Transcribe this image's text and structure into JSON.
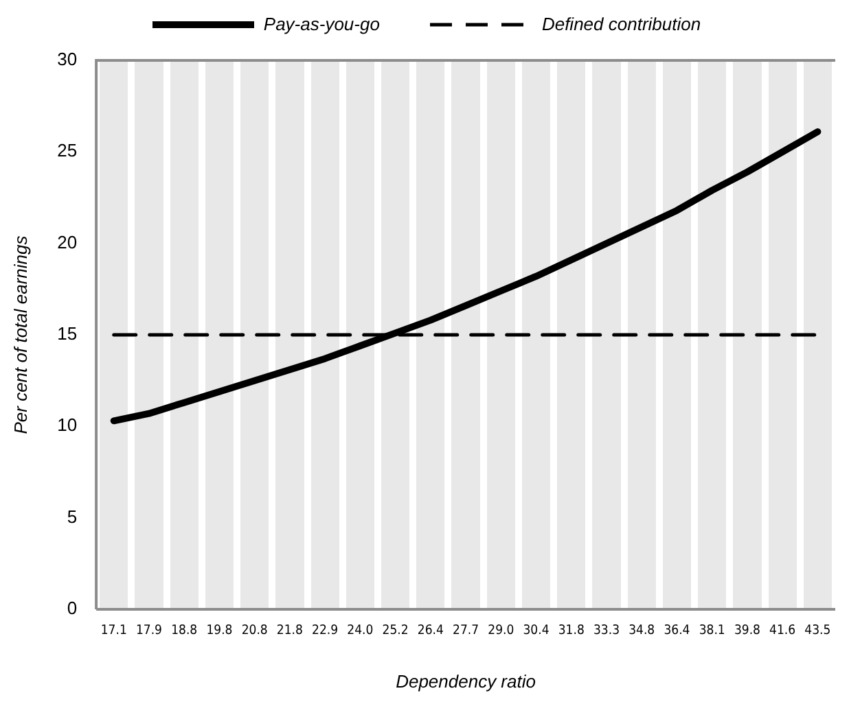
{
  "chart_data": {
    "type": "line",
    "xlabel": "Dependency ratio",
    "ylabel": "Per cent of total earnings",
    "categories": [
      "17.1",
      "17.9",
      "18.8",
      "19.8",
      "20.8",
      "21.8",
      "22.9",
      "24.0",
      "25.2",
      "26.4",
      "27.7",
      "29.0",
      "30.4",
      "31.8",
      "33.3",
      "34.8",
      "36.4",
      "38.1",
      "39.8",
      "41.6",
      "43.5"
    ],
    "series": [
      {
        "name": "Pay-as-you-go",
        "color": "#000000",
        "line_style": "solid",
        "values": [
          10.3,
          10.7,
          11.3,
          11.9,
          12.5,
          13.1,
          13.7,
          14.4,
          15.1,
          15.8,
          16.6,
          17.4,
          18.2,
          19.1,
          20.0,
          20.9,
          21.8,
          22.9,
          23.9,
          25.0,
          26.1
        ]
      },
      {
        "name": "Defined contribution",
        "color": "#000000",
        "line_style": "dashed",
        "values": [
          15,
          15,
          15,
          15,
          15,
          15,
          15,
          15,
          15,
          15,
          15,
          15,
          15,
          15,
          15,
          15,
          15,
          15,
          15,
          15,
          15
        ]
      }
    ],
    "ylim": [
      0,
      30
    ],
    "yticks": [
      0,
      5,
      10,
      15,
      20,
      25,
      30
    ],
    "grid": "x",
    "legend": "top",
    "marker": "none"
  }
}
